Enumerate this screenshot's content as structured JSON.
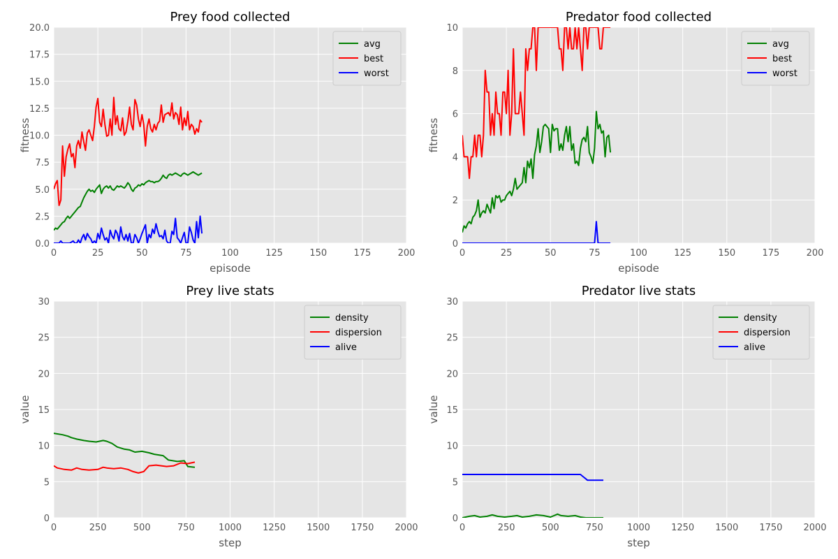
{
  "chart_data": [
    {
      "type": "line",
      "title": "Prey food collected",
      "xlabel": "episode",
      "ylabel": "fitness",
      "xlim": [
        0,
        200
      ],
      "ylim": [
        0,
        20
      ],
      "xticks": [
        0,
        25,
        50,
        75,
        100,
        125,
        150,
        175,
        200
      ],
      "yticks": [
        0.0,
        2.5,
        5.0,
        7.5,
        10.0,
        12.5,
        15.0,
        17.5,
        20.0
      ],
      "ytick_labels": [
        "0.0",
        "2.5",
        "5.0",
        "7.5",
        "10.0",
        "12.5",
        "15.0",
        "17.5",
        "20.0"
      ],
      "grid": true,
      "legend_loc": "upper-right",
      "series": [
        {
          "name": "avg",
          "color": "#008000",
          "x_start": 0,
          "x_step": 1,
          "values": [
            1.2,
            1.4,
            1.3,
            1.5,
            1.7,
            1.9,
            2.0,
            2.3,
            2.5,
            2.3,
            2.5,
            2.7,
            2.9,
            3.1,
            3.3,
            3.4,
            3.8,
            4.2,
            4.5,
            4.8,
            5.0,
            4.8,
            4.9,
            4.7,
            5.0,
            5.2,
            5.4,
            4.6,
            5.0,
            5.2,
            5.3,
            5.1,
            5.3,
            5.0,
            4.9,
            5.1,
            5.3,
            5.2,
            5.3,
            5.2,
            5.1,
            5.3,
            5.6,
            5.4,
            5.0,
            4.8,
            5.1,
            5.2,
            5.4,
            5.3,
            5.5,
            5.4,
            5.6,
            5.7,
            5.8,
            5.7,
            5.7,
            5.6,
            5.7,
            5.7,
            5.8,
            6.0,
            6.3,
            6.1,
            6.0,
            6.3,
            6.4,
            6.3,
            6.4,
            6.5,
            6.4,
            6.3,
            6.2,
            6.4,
            6.5,
            6.4,
            6.3,
            6.4,
            6.5,
            6.6,
            6.5,
            6.4,
            6.3,
            6.4,
            6.5
          ]
        },
        {
          "name": "best",
          "color": "#ff0000",
          "x_start": 0,
          "x_step": 1,
          "values": [
            5.0,
            5.5,
            5.8,
            3.5,
            4.0,
            9.0,
            6.2,
            8.0,
            8.7,
            9.2,
            8.0,
            8.3,
            7.0,
            9.0,
            9.5,
            8.8,
            10.3,
            9.4,
            8.6,
            10.2,
            10.5,
            10.0,
            9.5,
            10.8,
            12.6,
            13.4,
            11.2,
            10.8,
            12.4,
            11.0,
            9.9,
            10.0,
            11.5,
            10.0,
            13.5,
            11.0,
            11.8,
            10.6,
            10.4,
            11.6,
            10.0,
            10.3,
            11.3,
            12.6,
            11.0,
            10.5,
            13.3,
            12.8,
            11.5,
            10.8,
            11.9,
            11.0,
            9.0,
            10.8,
            11.5,
            10.6,
            10.3,
            11.0,
            10.5,
            11.1,
            11.3,
            12.8,
            11.2,
            11.9,
            12.0,
            12.1,
            11.8,
            13.0,
            11.5,
            12.1,
            11.9,
            11.0,
            12.6,
            10.5,
            11.6,
            10.9,
            12.2,
            10.5,
            11.0,
            10.8,
            10.1,
            10.6,
            10.3,
            11.4,
            11.2
          ]
        },
        {
          "name": "worst",
          "color": "#0000ff",
          "x_start": 0,
          "x_step": 1,
          "values": [
            0.0,
            0.0,
            0.0,
            0.0,
            0.2,
            0.0,
            0.0,
            0.0,
            0.0,
            0.0,
            0.1,
            0.2,
            0.0,
            0.0,
            0.3,
            0.0,
            0.5,
            0.8,
            0.3,
            0.9,
            0.6,
            0.4,
            0.0,
            0.2,
            0.0,
            0.9,
            0.4,
            1.4,
            0.8,
            0.3,
            0.5,
            0.0,
            1.2,
            0.7,
            0.4,
            1.2,
            0.9,
            0.2,
            1.5,
            0.6,
            0.3,
            0.8,
            0.2,
            0.9,
            0.0,
            0.0,
            0.8,
            0.5,
            0.0,
            0.4,
            0.9,
            1.3,
            1.7,
            0.0,
            0.8,
            0.5,
            1.3,
            0.9,
            1.8,
            1.1,
            0.6,
            0.7,
            0.4,
            1.2,
            0.2,
            0.0,
            0.0,
            1.1,
            0.8,
            2.3,
            0.5,
            0.3,
            0.0,
            0.5,
            1.0,
            0.0,
            0.0,
            1.5,
            1.0,
            0.3,
            0.0,
            2.0,
            0.5,
            2.5,
            0.9
          ]
        }
      ]
    },
    {
      "type": "line",
      "title": "Predator food collected",
      "xlabel": "episode",
      "ylabel": "fitness",
      "xlim": [
        0,
        200
      ],
      "ylim": [
        0,
        10
      ],
      "xticks": [
        0,
        25,
        50,
        75,
        100,
        125,
        150,
        175,
        200
      ],
      "yticks": [
        0,
        2,
        4,
        6,
        8,
        10
      ],
      "ytick_labels": [
        "0",
        "2",
        "4",
        "6",
        "8",
        "10"
      ],
      "grid": true,
      "legend_loc": "upper-right",
      "series": [
        {
          "name": "avg",
          "color": "#008000",
          "x_start": 0,
          "x_step": 1,
          "values": [
            0.5,
            0.8,
            0.7,
            0.9,
            1.0,
            0.9,
            1.2,
            1.3,
            1.5,
            2.0,
            1.2,
            1.4,
            1.5,
            1.4,
            1.8,
            1.6,
            1.4,
            2.1,
            1.6,
            2.2,
            2.1,
            2.2,
            1.9,
            2.0,
            2.0,
            2.2,
            2.3,
            2.4,
            2.2,
            2.5,
            3.0,
            2.5,
            2.6,
            2.7,
            2.8,
            3.5,
            2.8,
            3.8,
            3.5,
            3.9,
            3.0,
            4.1,
            4.5,
            5.3,
            4.2,
            4.7,
            5.4,
            5.5,
            5.4,
            5.3,
            4.2,
            5.5,
            5.2,
            5.3,
            5.3,
            4.3,
            4.6,
            4.3,
            5.0,
            5.4,
            4.7,
            5.4,
            4.3,
            4.6,
            3.7,
            3.8,
            3.6,
            4.4,
            4.8,
            4.9,
            4.7,
            5.4,
            4.2,
            4.0,
            3.7,
            4.4,
            6.1,
            5.3,
            5.5,
            5.1,
            5.2,
            4.0,
            4.9,
            5.0,
            4.2
          ]
        },
        {
          "name": "best",
          "color": "#ff0000",
          "x_start": 0,
          "x_step": 1,
          "values": [
            5,
            4,
            4,
            4,
            3,
            4,
            4,
            5,
            4,
            5,
            5,
            4,
            5,
            8,
            7,
            7,
            5,
            6,
            5,
            7,
            6,
            6,
            5,
            7,
            7,
            6,
            8,
            5,
            6,
            9,
            6,
            6,
            6,
            7,
            6,
            5,
            9,
            8,
            9,
            9,
            10,
            10,
            8,
            10,
            10,
            10,
            10,
            10,
            10,
            10,
            10,
            10,
            10,
            10,
            10,
            9,
            9,
            8,
            10,
            10,
            9,
            10,
            9,
            9,
            10,
            9,
            10,
            9,
            8,
            10,
            10,
            9,
            10,
            10,
            10,
            10,
            10,
            10,
            9,
            9,
            10,
            10,
            10,
            10,
            10
          ]
        },
        {
          "name": "worst",
          "color": "#0000ff",
          "x_start": 0,
          "x_step": 1,
          "values": [
            0,
            0,
            0,
            0,
            0,
            0,
            0,
            0,
            0,
            0,
            0,
            0,
            0,
            0,
            0,
            0,
            0,
            0,
            0,
            0,
            0,
            0,
            0,
            0,
            0,
            0,
            0,
            0,
            0,
            0,
            0,
            0,
            0,
            0,
            0,
            0,
            0,
            0,
            0,
            0,
            0,
            0,
            0,
            0,
            0,
            0,
            0,
            0,
            0,
            0,
            0,
            0,
            0,
            0,
            0,
            0,
            0,
            0,
            0,
            0,
            0,
            0,
            0,
            0,
            0,
            0,
            0,
            0,
            0,
            0,
            0,
            0,
            0,
            0,
            0,
            0,
            1,
            0,
            0,
            0,
            0,
            0,
            0,
            0,
            0
          ]
        }
      ]
    },
    {
      "type": "line",
      "title": "Prey live stats",
      "xlabel": "step",
      "ylabel": "value",
      "xlim": [
        0,
        2000
      ],
      "ylim": [
        0,
        30
      ],
      "xticks": [
        0,
        250,
        500,
        750,
        1000,
        1250,
        1500,
        1750,
        2000
      ],
      "yticks": [
        0,
        5,
        10,
        15,
        20,
        25,
        30
      ],
      "ytick_labels": [
        "0",
        "5",
        "10",
        "15",
        "20",
        "25",
        "30"
      ],
      "grid": true,
      "legend_loc": "upper-right",
      "series": [
        {
          "name": "density",
          "color": "#008000",
          "x": [
            0,
            50,
            80,
            100,
            130,
            170,
            200,
            240,
            280,
            300,
            330,
            360,
            400,
            430,
            460,
            500,
            540,
            570,
            620,
            650,
            700,
            740,
            760,
            800
          ],
          "values": [
            11.7,
            11.5,
            11.3,
            11.1,
            10.9,
            10.7,
            10.6,
            10.5,
            10.7,
            10.6,
            10.3,
            9.8,
            9.5,
            9.4,
            9.1,
            9.2,
            9.0,
            8.8,
            8.6,
            8.0,
            7.8,
            7.9,
            7.1,
            7.0
          ]
        },
        {
          "name": "dispersion",
          "color": "#ff0000",
          "x": [
            0,
            20,
            60,
            100,
            130,
            160,
            200,
            250,
            280,
            300,
            340,
            380,
            420,
            450,
            480,
            510,
            540,
            580,
            640,
            680,
            720,
            760,
            800
          ],
          "values": [
            7.2,
            6.9,
            6.7,
            6.6,
            6.9,
            6.7,
            6.6,
            6.7,
            7.0,
            6.9,
            6.8,
            6.9,
            6.7,
            6.4,
            6.2,
            6.4,
            7.2,
            7.3,
            7.1,
            7.2,
            7.6,
            7.5,
            7.7
          ]
        },
        {
          "name": "alive",
          "color": "#0000ff",
          "x": [],
          "values": []
        }
      ]
    },
    {
      "type": "line",
      "title": "Predator live stats",
      "xlabel": "step",
      "ylabel": "value",
      "xlim": [
        0,
        2000
      ],
      "ylim": [
        0,
        30
      ],
      "xticks": [
        0,
        250,
        500,
        750,
        1000,
        1250,
        1500,
        1750,
        2000
      ],
      "yticks": [
        0,
        5,
        10,
        15,
        20,
        25,
        30
      ],
      "ytick_labels": [
        "0",
        "5",
        "10",
        "15",
        "20",
        "25",
        "30"
      ],
      "grid": true,
      "legend_loc": "upper-right",
      "series": [
        {
          "name": "density",
          "color": "#008000",
          "x": [
            0,
            40,
            70,
            100,
            140,
            170,
            200,
            240,
            280,
            310,
            340,
            380,
            420,
            460,
            500,
            540,
            560,
            600,
            640,
            670,
            700,
            740,
            780,
            800
          ],
          "values": [
            0.0,
            0.2,
            0.3,
            0.1,
            0.2,
            0.4,
            0.2,
            0.1,
            0.2,
            0.3,
            0.1,
            0.2,
            0.4,
            0.3,
            0.1,
            0.5,
            0.3,
            0.2,
            0.3,
            0.1,
            0.0,
            0.0,
            0.0,
            0.0
          ]
        },
        {
          "name": "dispersion",
          "color": "#ff0000",
          "x": [],
          "values": []
        },
        {
          "name": "alive",
          "color": "#0000ff",
          "x": [
            0,
            200,
            400,
            600,
            670,
            680,
            690,
            700,
            710,
            720,
            800
          ],
          "values": [
            6.0,
            6.0,
            6.0,
            6.0,
            6.0,
            5.8,
            5.6,
            5.4,
            5.2,
            5.2,
            5.2
          ]
        }
      ]
    }
  ]
}
